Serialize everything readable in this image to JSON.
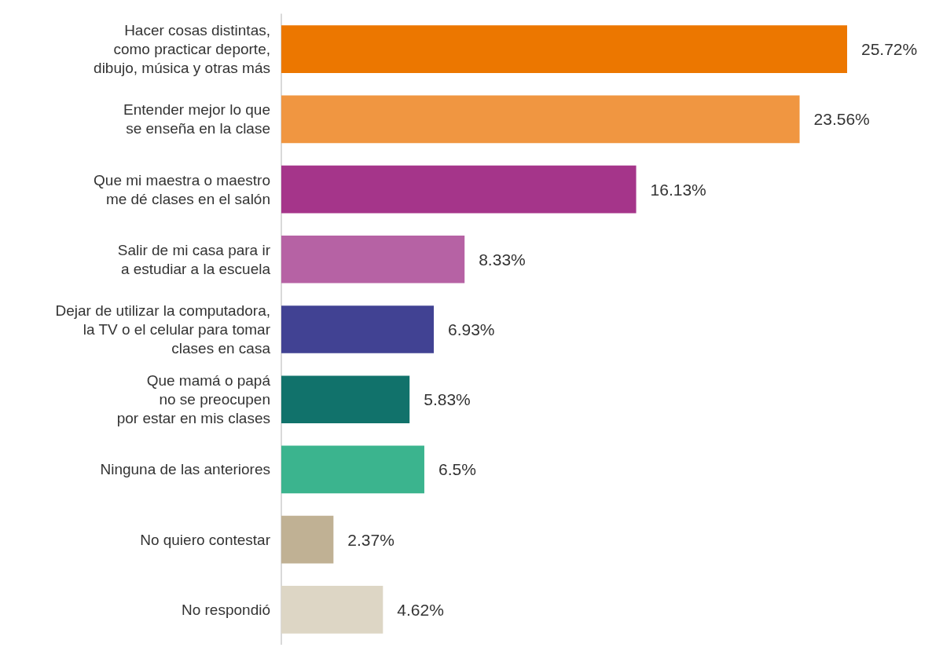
{
  "chart_data": {
    "type": "bar",
    "orientation": "horizontal",
    "categories": [
      "Hacer cosas distintas,\ncomo practicar deporte,\ndibujo, música y otras más",
      "Entender mejor lo que\nse enseña en la clase",
      "Que mi maestra o maestro\nme dé clases en el salón",
      "Salir de mi casa para ir\na estudiar a la escuela",
      "Dejar de utilizar la computadora,\nla TV o el celular para tomar\nclases en casa",
      "Que mamá o papá\nno se preocupen\npor estar en mis clases",
      "Ninguna de las anteriores",
      "No quiero contestar",
      "No respondió"
    ],
    "values": [
      25.72,
      23.56,
      16.13,
      8.33,
      6.93,
      5.83,
      6.5,
      2.37,
      4.62
    ],
    "value_labels": [
      "25.72%",
      "23.56%",
      "16.13%",
      "8.33%",
      "6.93%",
      "5.83%",
      "6.5%",
      "2.37%",
      "4.62%"
    ],
    "colors": [
      "#ec7700",
      "#f09641",
      "#a5358a",
      "#b662a4",
      "#414293",
      "#11726b",
      "#3bb48e",
      "#c0b194",
      "#ddd6c5"
    ]
  }
}
